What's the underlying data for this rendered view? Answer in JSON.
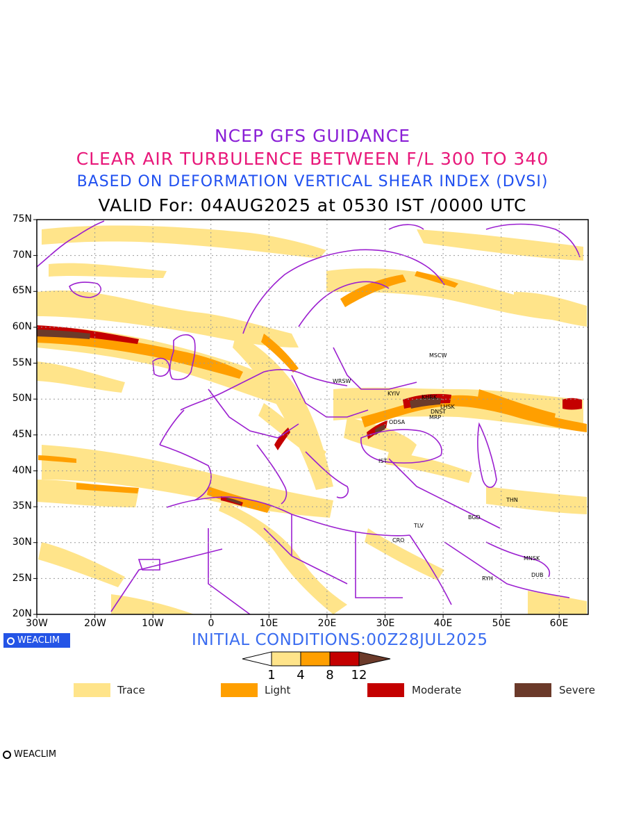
{
  "titles": {
    "line1": "NCEP GFS GUIDANCE",
    "line2": "CLEAR AIR TURBULENCE BETWEEN F/L 300 TO 340",
    "line3": "BASED ON DEFORMATION VERTICAL SHEAR INDEX (DVSI)",
    "line4": "VALID For: 04AUG2025 at 0530 IST /0000 UTC"
  },
  "axes": {
    "lat_labels": [
      "75N",
      "70N",
      "65N",
      "60N",
      "55N",
      "50N",
      "45N",
      "40N",
      "35N",
      "30N",
      "25N",
      "20N"
    ],
    "lon_labels": [
      "30W",
      "20W",
      "10W",
      "0",
      "10E",
      "20E",
      "30E",
      "40E",
      "50E",
      "60E"
    ],
    "lat_range": [
      20,
      75
    ],
    "lon_range": [
      -30,
      65
    ],
    "grid": "dotted"
  },
  "cities": [
    {
      "name": "MSCW",
      "lon": 37.6,
      "lat": 55.75
    },
    {
      "name": "WRSW",
      "lon": 21.0,
      "lat": 52.2
    },
    {
      "name": "KYIV",
      "lon": 30.5,
      "lat": 50.4
    },
    {
      "name": "KHRK",
      "lon": 36.2,
      "lat": 49.9
    },
    {
      "name": "LHSK",
      "lon": 39.3,
      "lat": 48.6
    },
    {
      "name": "DNST",
      "lon": 37.8,
      "lat": 48.0
    },
    {
      "name": "MRP",
      "lon": 37.5,
      "lat": 47.1
    },
    {
      "name": "ODSA",
      "lon": 30.7,
      "lat": 46.5
    },
    {
      "name": "IST",
      "lon": 29.0,
      "lat": 41.0
    },
    {
      "name": "THN",
      "lon": 51.4,
      "lat": 35.7
    },
    {
      "name": "BGD",
      "lon": 44.4,
      "lat": 33.3
    },
    {
      "name": "TLV",
      "lon": 34.8,
      "lat": 32.1
    },
    {
      "name": "CRO",
      "lon": 31.2,
      "lat": 30.0
    },
    {
      "name": "MNSK",
      "lon": 55.0,
      "lat": 27.5
    },
    {
      "name": "DUB",
      "lon": 55.3,
      "lat": 25.2
    },
    {
      "name": "RYH",
      "lon": 46.7,
      "lat": 24.7
    }
  ],
  "footer": {
    "brand": "WEACLIM",
    "initial": "INITIAL  CONDITIONS:00Z28JUL2025"
  },
  "colorbar": {
    "ticks": [
      "1",
      "4",
      "8",
      "12"
    ],
    "colors": [
      "#ffe48a",
      "#ff9f00",
      "#c40000",
      "#6b3a2a"
    ]
  },
  "legend": [
    {
      "label": "Trace",
      "color": "#ffe48a"
    },
    {
      "label": "Light",
      "color": "#ff9f00"
    },
    {
      "label": "Moderate",
      "color": "#c40000"
    },
    {
      "label": "Severe",
      "color": "#6b3a2a"
    }
  ],
  "colors": {
    "boundary": "#9b1fd0",
    "trace": "#ffe48a",
    "light": "#ff9f00",
    "moderate": "#c40000",
    "severe": "#6b3a2a"
  }
}
